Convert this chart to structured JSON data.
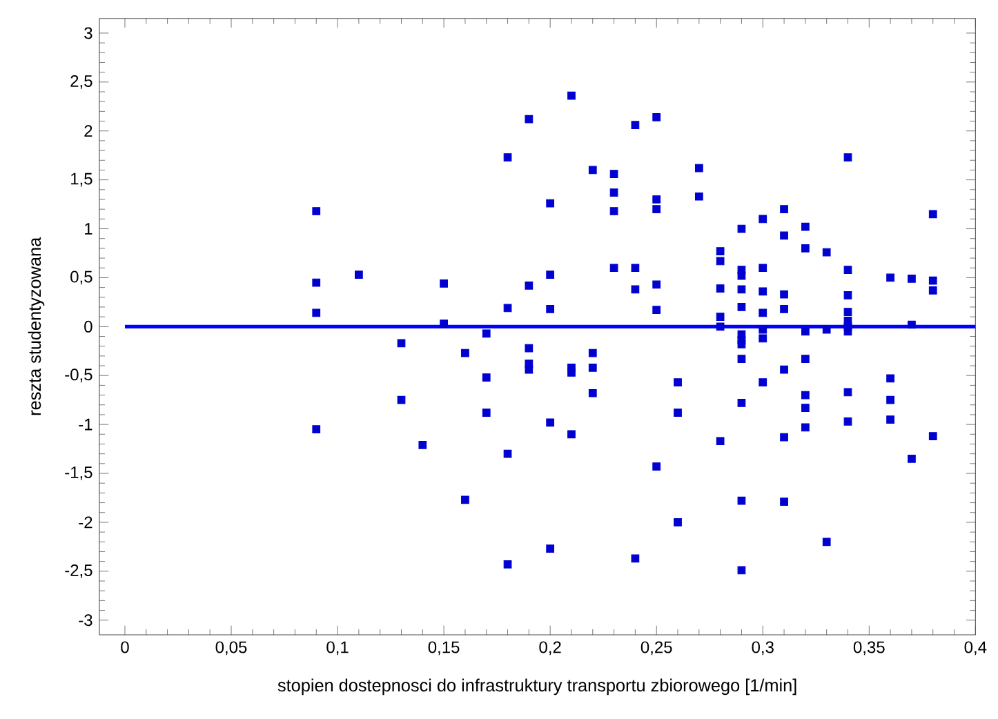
{
  "chart_data": {
    "type": "scatter",
    "xlabel": "stopien dostepnosci do infrastruktury transportu zbiorowego [1/min]",
    "ylabel": "reszta studentyzowana",
    "xlim": [
      -0.012,
      0.4
    ],
    "ylim": [
      -3.15,
      3.15
    ],
    "xticks": [
      0,
      {
        "value": 0.05,
        "label": "0,05"
      },
      {
        "value": 0.1,
        "label": "0,1"
      },
      {
        "value": 0.15,
        "label": "0,15"
      },
      {
        "value": 0.2,
        "label": "0,2"
      },
      {
        "value": 0.25,
        "label": "0,25"
      },
      {
        "value": 0.3,
        "label": "0,3"
      },
      {
        "value": 0.35,
        "label": "0,35"
      },
      {
        "value": 0.4,
        "label": "0,4"
      }
    ],
    "yticks": [
      -3,
      {
        "value": -2.5,
        "label": "-2,5"
      },
      -2,
      {
        "value": -1.5,
        "label": "-1,5"
      },
      -1,
      {
        "value": -0.5,
        "label": "-0,5"
      },
      0,
      {
        "value": 0.5,
        "label": "0,5"
      },
      1,
      {
        "value": 1.5,
        "label": "1,5"
      },
      2,
      {
        "value": 2.5,
        "label": "2,5"
      },
      3
    ],
    "grid": false,
    "series": [
      {
        "marker": "square",
        "color": "#0000d0",
        "x": [
          0.09,
          0.09,
          0.09,
          0.09,
          0.11,
          0.13,
          0.13,
          0.14,
          0.15,
          0.15,
          0.16,
          0.16,
          0.17,
          0.17,
          0.17,
          0.18,
          0.18,
          0.18,
          0.18,
          0.19,
          0.19,
          0.19,
          0.19,
          0.19,
          0.2,
          0.2,
          0.2,
          0.2,
          0.2,
          0.21,
          0.21,
          0.21,
          0.21,
          0.22,
          0.22,
          0.22,
          0.22,
          0.23,
          0.23,
          0.23,
          0.23,
          0.24,
          0.24,
          0.24,
          0.24,
          0.25,
          0.25,
          0.25,
          0.25,
          0.25,
          0.25,
          0.26,
          0.26,
          0.26,
          0.27,
          0.27,
          0.28,
          0.28,
          0.28,
          0.28,
          0.28,
          0.28,
          0.29,
          0.29,
          0.29,
          0.29,
          0.29,
          0.29,
          0.29,
          0.29,
          0.29,
          0.29,
          0.29,
          0.29,
          0.3,
          0.3,
          0.3,
          0.3,
          0.3,
          0.3,
          0.3,
          0.31,
          0.31,
          0.31,
          0.31,
          0.31,
          0.31,
          0.31,
          0.32,
          0.32,
          0.32,
          0.32,
          0.32,
          0.32,
          0.32,
          0.33,
          0.33,
          0.33,
          0.34,
          0.34,
          0.34,
          0.34,
          0.34,
          0.34,
          0.34,
          0.34,
          0.34,
          0.36,
          0.36,
          0.36,
          0.36,
          0.37,
          0.37,
          0.37,
          0.38,
          0.38,
          0.38,
          0.38
        ],
        "values": [
          1.18,
          0.45,
          0.14,
          -1.05,
          0.53,
          -0.17,
          -0.75,
          -1.21,
          0.44,
          0.03,
          -0.27,
          -1.77,
          -0.07,
          -0.52,
          -0.88,
          1.73,
          0.19,
          -1.3,
          -2.43,
          2.12,
          0.42,
          -0.22,
          -0.38,
          -0.44,
          1.26,
          0.53,
          0.18,
          -0.98,
          -2.27,
          2.36,
          -0.42,
          -0.47,
          -1.1,
          1.6,
          -0.27,
          -0.42,
          -0.68,
          1.56,
          1.37,
          1.18,
          0.6,
          2.06,
          0.6,
          0.38,
          -2.37,
          2.14,
          1.3,
          1.2,
          0.43,
          0.17,
          -1.43,
          -0.57,
          -0.88,
          -2.0,
          1.62,
          1.33,
          0.77,
          0.67,
          0.39,
          0.1,
          0.0,
          -1.17,
          1.0,
          0.58,
          0.52,
          0.38,
          0.2,
          -0.08,
          -0.14,
          -0.18,
          -0.33,
          -0.78,
          -1.78,
          -2.49,
          1.1,
          0.6,
          0.36,
          0.14,
          -0.03,
          -0.12,
          -0.57,
          1.2,
          0.93,
          0.33,
          0.18,
          -0.44,
          -1.13,
          -1.79,
          1.02,
          0.8,
          -0.05,
          -0.33,
          -0.7,
          -0.83,
          -1.03,
          0.76,
          -0.03,
          -2.2,
          1.73,
          0.58,
          0.32,
          0.15,
          0.06,
          0.0,
          -0.05,
          -0.67,
          -0.97,
          0.5,
          -0.53,
          -0.75,
          -0.95,
          0.49,
          0.02,
          -1.35,
          1.15,
          0.47,
          0.37,
          -1.12
        ]
      },
      {
        "type": "line",
        "marker": "none",
        "line_style": "solid",
        "color": "#0000ff",
        "x": [
          0,
          0.4
        ],
        "values": [
          0,
          0
        ]
      }
    ]
  }
}
